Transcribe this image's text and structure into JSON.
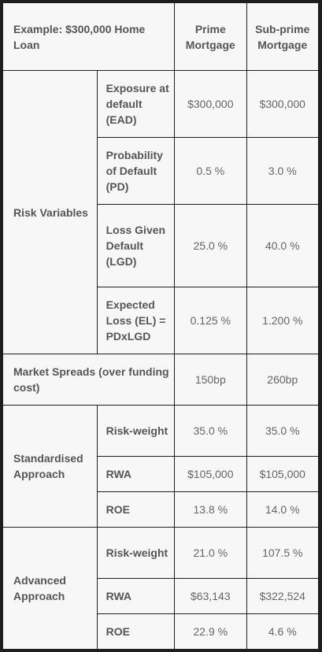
{
  "header": {
    "example_label": "Example: $300,000 Home Loan",
    "col_prime": "Prime Mortgage",
    "col_subprime": "Sub-prime Mortgage"
  },
  "risk_variables": {
    "label": "Risk Variables",
    "rows": [
      {
        "name": "Exposure at default (EAD)",
        "prime": "$300,000",
        "subprime": "$300,000"
      },
      {
        "name": "Probability of Default (PD)",
        "prime": "0.5 %",
        "subprime": "3.0 %"
      },
      {
        "name": "Loss Given Default (LGD)",
        "prime": "25.0 %",
        "subprime": "40.0 %"
      },
      {
        "name": "Expected Loss (EL) = PDxLGD",
        "prime": "0.125 %",
        "subprime": "1.200 %"
      }
    ]
  },
  "market_spreads": {
    "label": "Market Spreads (over funding cost)",
    "prime": "150bp",
    "subprime": "260bp"
  },
  "standardised": {
    "label": "Standardised Approach",
    "rows": [
      {
        "name": "Risk-weight",
        "prime": "35.0 %",
        "subprime": "35.0 %"
      },
      {
        "name": "RWA",
        "prime": "$105,000",
        "subprime": "$105,000"
      },
      {
        "name": "ROE",
        "prime": "13.8 %",
        "subprime": "14.0 %"
      }
    ]
  },
  "advanced": {
    "label": "Advanced Approach",
    "rows": [
      {
        "name": "Risk-weight",
        "prime": "21.0 %",
        "subprime": "107.5 %"
      },
      {
        "name": "RWA",
        "prime": "$63,143",
        "subprime": "$322,524"
      },
      {
        "name": "ROE",
        "prime": "22.9 %",
        "subprime": "4.6 %"
      }
    ]
  }
}
